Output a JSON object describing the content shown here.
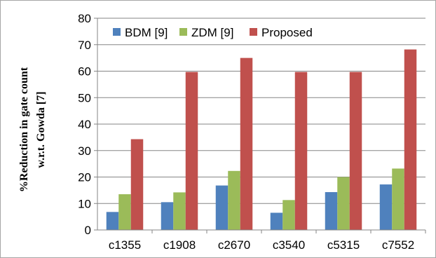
{
  "chart_data": {
    "type": "bar",
    "categories": [
      "c1355",
      "c1908",
      "c2670",
      "c3540",
      "c5315",
      "c7552"
    ],
    "series": [
      {
        "name": "BDM [9]",
        "color": "#4f81bd",
        "values": [
          6.8,
          10.5,
          16.8,
          6.5,
          14.3,
          17.2
        ]
      },
      {
        "name": "ZDM [9]",
        "color": "#9bbb59",
        "values": [
          13.5,
          14.2,
          22.3,
          11.3,
          20.0,
          23.2
        ]
      },
      {
        "name": "Proposed",
        "color": "#c0504d",
        "values": [
          34.3,
          59.7,
          65.0,
          59.7,
          59.7,
          68.2
        ]
      }
    ],
    "title": "",
    "xlabel": "",
    "ylabel_line1": "%Reduction in gate count",
    "ylabel_line2": "w.r.t. Gowda  [7]",
    "ylim": [
      0,
      80
    ],
    "yticks": [
      0,
      10,
      20,
      30,
      40,
      50,
      60,
      70,
      80
    ],
    "grid": true,
    "legend_position": "top-left"
  }
}
